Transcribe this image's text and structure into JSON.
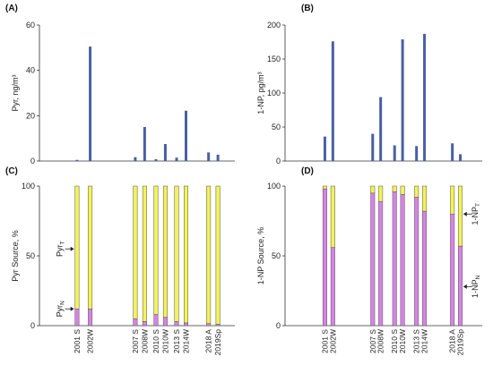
{
  "colors": {
    "bar": "#4a5fa3",
    "native": "#d584e3",
    "transported": "#f2f25a"
  },
  "chart_data": [
    {
      "id": "A",
      "type": "bar",
      "panel_label": "(A)",
      "ylabel": "Pyr, ng/m³",
      "ylim": [
        0,
        60
      ],
      "yticks": [
        0,
        20,
        40,
        60
      ],
      "grid": false,
      "x": [
        2.0,
        2.7,
        5.1,
        5.6,
        6.2,
        6.7,
        7.3,
        7.8,
        9.0,
        9.5
      ],
      "values": [
        0.5,
        50.5,
        1.7,
        15.0,
        0.8,
        7.5,
        1.5,
        22.2,
        3.8,
        2.8
      ]
    },
    {
      "id": "B",
      "type": "bar",
      "panel_label": "(B)",
      "ylabel": "1-NP, pg/m³",
      "ylim": [
        0,
        200
      ],
      "yticks": [
        0,
        50,
        100,
        150,
        200
      ],
      "grid": false,
      "x": [
        2.0,
        2.4,
        4.4,
        4.8,
        5.5,
        5.9,
        6.6,
        7.0,
        8.4,
        8.8
      ],
      "values": [
        36,
        176,
        40,
        94,
        23,
        179,
        22,
        187,
        26,
        10
      ]
    },
    {
      "id": "C",
      "type": "bar",
      "stacked": true,
      "panel_label": "(C)",
      "ylabel": "Pyr Source, %",
      "ylim": [
        0,
        100
      ],
      "yticks": [
        0,
        50,
        100
      ],
      "grid": false,
      "x": [
        2.0,
        2.7,
        5.1,
        5.6,
        6.2,
        6.7,
        7.3,
        7.8,
        9.0,
        9.5
      ],
      "categories": [
        {
          "label": "2001 S",
          "x": 2.0
        },
        {
          "label": "2002W",
          "x": 2.7
        },
        {
          "label": "2007 S",
          "x": 5.1
        },
        {
          "label": "2008W",
          "x": 5.6
        },
        {
          "label": "2010 S",
          "x": 6.2
        },
        {
          "label": "2010W",
          "x": 6.7
        },
        {
          "label": "2013 S",
          "x": 7.3
        },
        {
          "label": "2014W",
          "x": 7.8
        },
        {
          "label": "2018 A",
          "x": 9.0
        },
        {
          "label": "2019Sp",
          "x": 9.5
        }
      ],
      "series": [
        {
          "key": "native",
          "values": [
            12,
            12,
            5,
            3,
            8,
            6,
            3,
            2,
            1.5,
            1
          ]
        },
        {
          "key": "transported",
          "values": [
            88,
            88,
            95,
            97,
            92,
            94,
            97,
            98,
            98.5,
            99
          ]
        }
      ],
      "annotations": [
        {
          "id": "pyr-t",
          "main": "Pyr",
          "sub": "T",
          "bar": 0,
          "y": 55
        },
        {
          "id": "pyr-n",
          "main": "Pyr",
          "sub": "N",
          "bar": 0,
          "y": 12
        }
      ]
    },
    {
      "id": "D",
      "type": "bar",
      "stacked": true,
      "panel_label": "(D)",
      "ylabel": "1-NP Source, %",
      "ylim": [
        0,
        100
      ],
      "yticks": [
        0,
        50,
        100
      ],
      "grid": false,
      "x": [
        2.0,
        2.4,
        4.4,
        4.8,
        5.5,
        5.9,
        6.6,
        7.0,
        8.4,
        8.8
      ],
      "categories": [
        {
          "label": "2001 S",
          "x": 2.0
        },
        {
          "label": "2002W",
          "x": 2.4
        },
        {
          "label": "2007 S",
          "x": 4.4
        },
        {
          "label": "2008W",
          "x": 4.8
        },
        {
          "label": "2010 S",
          "x": 5.5
        },
        {
          "label": "2010W",
          "x": 5.9
        },
        {
          "label": "2013 S",
          "x": 6.6
        },
        {
          "label": "2014W",
          "x": 7.0
        },
        {
          "label": "2018 A",
          "x": 8.4
        },
        {
          "label": "2019Sp",
          "x": 8.8
        }
      ],
      "series": [
        {
          "key": "native",
          "values": [
            98,
            56,
            95,
            89,
            96,
            94,
            92,
            82,
            80,
            57
          ]
        },
        {
          "key": "transported",
          "values": [
            2,
            44,
            5,
            11,
            4,
            6,
            8,
            18,
            20,
            43
          ]
        }
      ],
      "annotations": [
        {
          "id": "np-t",
          "main": "1-NP",
          "sub": "T",
          "bar": 9,
          "y": 80
        },
        {
          "id": "np-n",
          "main": "1-NP",
          "sub": "N",
          "bar": 9,
          "y": 28
        }
      ]
    }
  ]
}
